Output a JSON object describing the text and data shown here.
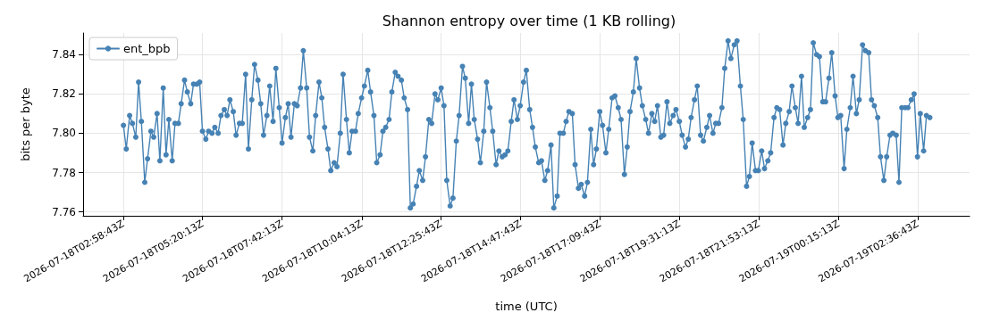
{
  "chart_data": {
    "type": "line",
    "title": "Shannon entropy over time (1 KB rolling)",
    "xlabel": "time (UTC)",
    "ylabel": "bits per byte",
    "x": [
      "2026-07-18T02:59",
      "2026-07-18T03:04",
      "2026-07-18T03:10",
      "2026-07-18T03:15",
      "2026-07-18T03:21",
      "2026-07-18T03:26",
      "2026-07-18T03:31",
      "2026-07-18T03:37",
      "2026-07-18T03:42",
      "2026-07-18T03:48",
      "2026-07-18T03:53",
      "2026-07-18T03:59",
      "2026-07-18T04:04",
      "2026-07-18T04:10",
      "2026-07-18T04:15",
      "2026-07-18T04:20",
      "2026-07-18T04:26",
      "2026-07-18T04:31",
      "2026-07-18T04:37",
      "2026-07-18T04:42",
      "2026-07-18T04:48",
      "2026-07-18T04:53",
      "2026-07-18T04:59",
      "2026-07-18T05:04",
      "2026-07-18T05:10",
      "2026-07-18T05:15",
      "2026-07-18T05:20",
      "2026-07-18T05:26",
      "2026-07-18T05:31",
      "2026-07-18T05:37",
      "2026-07-18T05:42",
      "2026-07-18T05:48",
      "2026-07-18T05:53",
      "2026-07-18T05:59",
      "2026-07-18T06:04",
      "2026-07-18T06:09",
      "2026-07-18T06:15",
      "2026-07-18T06:20",
      "2026-07-18T06:26",
      "2026-07-18T06:31",
      "2026-07-18T06:37",
      "2026-07-18T06:42",
      "2026-07-18T06:48",
      "2026-07-18T06:53",
      "2026-07-18T06:59",
      "2026-07-18T07:04",
      "2026-07-18T07:09",
      "2026-07-18T07:15",
      "2026-07-18T07:20",
      "2026-07-18T07:26",
      "2026-07-18T07:31",
      "2026-07-18T07:37",
      "2026-07-18T07:42",
      "2026-07-18T07:48",
      "2026-07-18T07:53",
      "2026-07-18T07:58",
      "2026-07-18T08:04",
      "2026-07-18T08:09",
      "2026-07-18T08:15",
      "2026-07-18T08:20",
      "2026-07-18T08:26",
      "2026-07-18T08:31",
      "2026-07-18T08:37",
      "2026-07-18T08:42",
      "2026-07-18T08:48",
      "2026-07-18T08:53",
      "2026-07-18T08:58",
      "2026-07-18T09:04",
      "2026-07-18T09:09",
      "2026-07-18T09:15",
      "2026-07-18T09:20",
      "2026-07-18T09:26",
      "2026-07-18T09:31",
      "2026-07-18T09:37",
      "2026-07-18T09:42",
      "2026-07-18T09:47",
      "2026-07-18T09:53",
      "2026-07-18T09:58",
      "2026-07-18T10:04",
      "2026-07-18T10:09",
      "2026-07-18T10:15",
      "2026-07-18T10:20",
      "2026-07-18T10:26",
      "2026-07-18T10:31",
      "2026-07-18T10:37",
      "2026-07-18T10:42",
      "2026-07-18T10:47",
      "2026-07-18T10:53",
      "2026-07-18T10:58",
      "2026-07-18T11:04",
      "2026-07-18T11:09",
      "2026-07-18T11:15",
      "2026-07-18T11:20",
      "2026-07-18T11:26",
      "2026-07-18T11:31",
      "2026-07-18T11:36",
      "2026-07-18T11:42",
      "2026-07-18T11:47",
      "2026-07-18T11:53",
      "2026-07-18T11:58",
      "2026-07-18T12:04",
      "2026-07-18T12:09",
      "2026-07-18T12:15",
      "2026-07-18T12:20",
      "2026-07-18T12:26",
      "2026-07-18T12:31",
      "2026-07-18T12:36",
      "2026-07-18T12:42",
      "2026-07-18T12:47",
      "2026-07-18T12:53",
      "2026-07-18T12:58",
      "2026-07-18T13:04",
      "2026-07-18T13:09",
      "2026-07-18T13:15",
      "2026-07-18T13:20",
      "2026-07-18T13:25",
      "2026-07-18T13:31",
      "2026-07-18T13:36",
      "2026-07-18T13:42",
      "2026-07-18T13:47",
      "2026-07-18T13:53",
      "2026-07-18T13:58",
      "2026-07-18T14:04",
      "2026-07-18T14:09",
      "2026-07-18T14:15",
      "2026-07-18T14:20",
      "2026-07-18T14:25",
      "2026-07-18T14:31",
      "2026-07-18T14:36",
      "2026-07-18T14:42",
      "2026-07-18T14:47",
      "2026-07-18T14:53",
      "2026-07-18T14:58",
      "2026-07-18T15:04",
      "2026-07-18T15:09",
      "2026-07-18T15:14",
      "2026-07-18T15:20",
      "2026-07-18T15:25",
      "2026-07-18T15:31",
      "2026-07-18T15:36",
      "2026-07-18T15:42",
      "2026-07-18T15:47",
      "2026-07-18T15:53",
      "2026-07-18T15:58",
      "2026-07-18T16:04",
      "2026-07-18T16:09",
      "2026-07-18T16:14",
      "2026-07-18T16:20",
      "2026-07-18T16:25",
      "2026-07-18T16:31",
      "2026-07-18T16:36",
      "2026-07-18T16:42",
      "2026-07-18T16:47",
      "2026-07-18T16:53",
      "2026-07-18T16:58",
      "2026-07-18T17:03",
      "2026-07-18T17:09",
      "2026-07-18T17:14",
      "2026-07-18T17:20",
      "2026-07-18T17:25",
      "2026-07-18T17:31",
      "2026-07-18T17:36",
      "2026-07-18T17:42",
      "2026-07-18T17:47",
      "2026-07-18T17:53",
      "2026-07-18T17:58",
      "2026-07-18T18:03",
      "2026-07-18T18:09",
      "2026-07-18T18:14",
      "2026-07-18T18:20",
      "2026-07-18T18:25",
      "2026-07-18T18:31",
      "2026-07-18T18:36",
      "2026-07-18T18:42",
      "2026-07-18T18:47",
      "2026-07-18T18:52",
      "2026-07-18T18:58",
      "2026-07-18T19:03",
      "2026-07-18T19:09",
      "2026-07-18T19:14",
      "2026-07-18T19:20",
      "2026-07-18T19:25",
      "2026-07-18T19:31",
      "2026-07-18T19:36",
      "2026-07-18T19:42",
      "2026-07-18T19:47",
      "2026-07-18T19:52",
      "2026-07-18T19:58",
      "2026-07-18T20:03",
      "2026-07-18T20:09",
      "2026-07-18T20:14",
      "2026-07-18T20:20",
      "2026-07-18T20:25",
      "2026-07-18T20:31",
      "2026-07-18T20:36",
      "2026-07-18T20:41",
      "2026-07-18T20:47",
      "2026-07-18T20:52",
      "2026-07-18T20:58",
      "2026-07-18T21:03",
      "2026-07-18T21:09",
      "2026-07-18T21:14",
      "2026-07-18T21:20",
      "2026-07-18T21:25",
      "2026-07-18T21:31",
      "2026-07-18T21:36",
      "2026-07-18T21:41",
      "2026-07-18T21:47",
      "2026-07-18T21:52",
      "2026-07-18T21:58",
      "2026-07-18T22:03",
      "2026-07-18T22:09",
      "2026-07-18T22:14",
      "2026-07-18T22:20",
      "2026-07-18T22:25",
      "2026-07-18T22:30",
      "2026-07-18T22:36",
      "2026-07-18T22:41",
      "2026-07-18T22:47",
      "2026-07-18T22:52",
      "2026-07-18T22:58",
      "2026-07-18T23:03",
      "2026-07-18T23:09",
      "2026-07-18T23:14",
      "2026-07-18T23:20",
      "2026-07-18T23:25",
      "2026-07-18T23:30",
      "2026-07-18T23:36",
      "2026-07-18T23:41",
      "2026-07-18T23:47",
      "2026-07-18T23:52",
      "2026-07-18T23:58",
      "2026-07-19T00:03",
      "2026-07-19T00:09",
      "2026-07-19T00:14",
      "2026-07-19T00:19",
      "2026-07-19T00:25",
      "2026-07-19T00:30",
      "2026-07-19T00:36",
      "2026-07-19T00:41",
      "2026-07-19T00:47",
      "2026-07-19T00:52",
      "2026-07-19T00:58",
      "2026-07-19T01:03",
      "2026-07-19T01:09",
      "2026-07-19T01:14",
      "2026-07-19T01:19",
      "2026-07-19T01:25",
      "2026-07-19T01:30",
      "2026-07-19T01:36",
      "2026-07-19T01:41",
      "2026-07-19T01:47",
      "2026-07-19T01:52",
      "2026-07-19T01:58",
      "2026-07-19T02:03",
      "2026-07-19T02:08",
      "2026-07-19T02:14",
      "2026-07-19T02:19",
      "2026-07-19T02:25",
      "2026-07-19T02:30",
      "2026-07-19T02:36",
      "2026-07-19T02:41",
      "2026-07-19T02:47",
      "2026-07-19T02:52",
      "2026-07-19T02:58"
    ],
    "series": [
      {
        "name": "ent_bpb",
        "color": "#4682b4",
        "values": [
          7.804,
          7.792,
          7.809,
          7.805,
          7.798,
          7.826,
          7.806,
          7.775,
          7.787,
          7.801,
          7.798,
          7.81,
          7.786,
          7.823,
          7.789,
          7.807,
          7.786,
          7.805,
          7.805,
          7.815,
          7.827,
          7.821,
          7.815,
          7.825,
          7.825,
          7.826,
          7.801,
          7.797,
          7.801,
          7.8,
          7.803,
          7.8,
          7.809,
          7.812,
          7.809,
          7.817,
          7.811,
          7.799,
          7.805,
          7.805,
          7.83,
          7.792,
          7.817,
          7.835,
          7.827,
          7.815,
          7.799,
          7.809,
          7.824,
          7.806,
          7.833,
          7.813,
          7.795,
          7.808,
          7.815,
          7.798,
          7.815,
          7.814,
          7.823,
          7.842,
          7.823,
          7.798,
          7.791,
          7.809,
          7.826,
          7.818,
          7.803,
          7.792,
          7.781,
          7.785,
          7.783,
          7.8,
          7.83,
          7.807,
          7.79,
          7.801,
          7.801,
          7.81,
          7.818,
          7.824,
          7.832,
          7.821,
          7.809,
          7.785,
          7.789,
          7.801,
          7.803,
          7.807,
          7.821,
          7.831,
          7.829,
          7.827,
          7.818,
          7.812,
          7.762,
          7.764,
          7.773,
          7.781,
          7.776,
          7.788,
          7.807,
          7.805,
          7.82,
          7.817,
          7.823,
          7.814,
          7.776,
          7.763,
          7.767,
          7.796,
          7.809,
          7.834,
          7.828,
          7.805,
          7.825,
          7.807,
          7.797,
          7.785,
          7.801,
          7.826,
          7.813,
          7.801,
          7.784,
          7.791,
          7.788,
          7.789,
          7.791,
          7.806,
          7.817,
          7.807,
          7.814,
          7.826,
          7.832,
          7.812,
          7.803,
          7.793,
          7.785,
          7.786,
          7.776,
          7.781,
          7.794,
          7.762,
          7.768,
          7.8,
          7.8,
          7.806,
          7.811,
          7.81,
          7.784,
          7.772,
          7.774,
          7.768,
          7.775,
          7.802,
          7.784,
          7.792,
          7.811,
          7.804,
          7.79,
          7.802,
          7.818,
          7.819,
          7.813,
          7.807,
          7.779,
          7.793,
          7.811,
          7.821,
          7.838,
          7.823,
          7.814,
          7.807,
          7.8,
          7.81,
          7.806,
          7.814,
          7.798,
          7.799,
          7.816,
          7.805,
          7.809,
          7.812,
          7.806,
          7.799,
          7.793,
          7.797,
          7.808,
          7.817,
          7.824,
          7.799,
          7.796,
          7.803,
          7.809,
          7.8,
          7.805,
          7.805,
          7.813,
          7.833,
          7.847,
          7.838,
          7.845,
          7.847,
          7.824,
          7.807,
          7.773,
          7.778,
          7.795,
          7.781,
          7.781,
          7.791,
          7.782,
          7.786,
          7.79,
          7.808,
          7.813,
          7.812,
          7.794,
          7.805,
          7.811,
          7.824,
          7.813,
          7.805,
          7.829,
          7.803,
          7.808,
          7.812,
          7.846,
          7.84,
          7.839,
          7.816,
          7.816,
          7.828,
          7.841,
          7.819,
          7.808,
          7.809,
          7.782,
          7.802,
          7.813,
          7.829,
          7.81,
          7.817,
          7.845,
          7.842,
          7.841,
          7.817,
          7.814,
          7.808,
          7.788,
          7.776,
          7.788,
          7.799,
          7.8,
          7.799,
          7.775,
          7.813,
          7.813,
          7.813,
          7.817,
          7.82,
          7.788,
          7.81,
          7.791,
          7.809,
          7.808
        ]
      }
    ],
    "xlim": [
      "2026-07-18T01:47",
      "2026-07-19T04:09"
    ],
    "xticks": [
      "2026-07-18T02:58:43Z",
      "2026-07-18T05:20:13Z",
      "2026-07-18T07:42:13Z",
      "2026-07-18T10:04:13Z",
      "2026-07-18T12:25:43Z",
      "2026-07-18T14:47:43Z",
      "2026-07-18T17:09:43Z",
      "2026-07-18T19:31:13Z",
      "2026-07-18T21:53:13Z",
      "2026-07-19T00:15:13Z",
      "2026-07-19T02:36:43Z"
    ],
    "ylim": [
      7.758,
      7.851
    ],
    "yticks": [
      7.76,
      7.78,
      {
        "value": 7.8,
        "label": "7.80"
      },
      7.82,
      7.84
    ],
    "grid": true,
    "legend": "top left",
    "marker": "circle",
    "line_style": "solid"
  }
}
